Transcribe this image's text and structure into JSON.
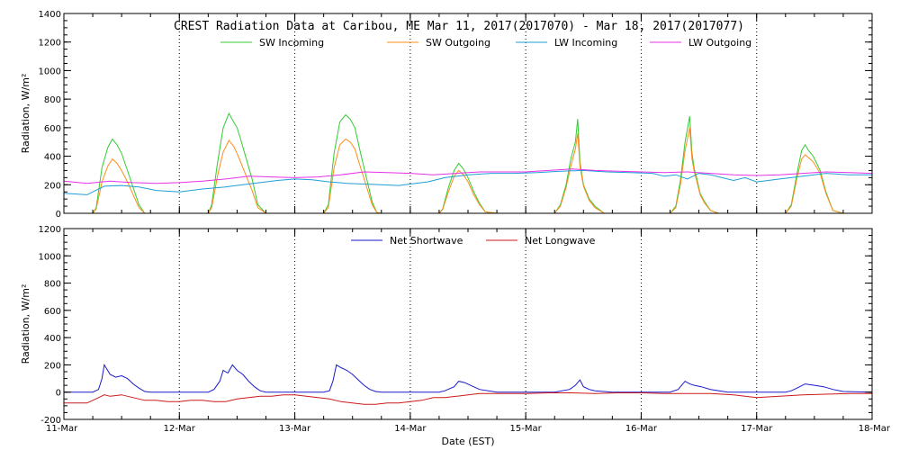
{
  "chart_data": [
    {
      "type": "line",
      "title": "CREST Radiation Data at Caribou, ME   Mar 11, 2017(2017070) - Mar 18, 2017(2017077)",
      "ylabel": "Radiation, W/m^2",
      "xlabel": "",
      "ylim": [
        0,
        1400
      ],
      "yticks": [
        0,
        200,
        400,
        600,
        800,
        1000,
        1200,
        1400
      ],
      "xlim": [
        0,
        7
      ],
      "xtick_labels": [
        "11-Mar",
        "12-Mar",
        "13-Mar",
        "14-Mar",
        "15-Mar",
        "16-Mar",
        "17-Mar",
        "18-Mar"
      ],
      "grid": true,
      "legend_position": "top",
      "series": [
        {
          "name": "SW Incoming",
          "color": "#33cc33",
          "x": [
            0.0,
            0.25,
            0.28,
            0.33,
            0.38,
            0.42,
            0.46,
            0.5,
            0.55,
            0.6,
            0.65,
            0.7,
            0.75,
            1.0,
            1.25,
            1.28,
            1.33,
            1.38,
            1.43,
            1.47,
            1.5,
            1.53,
            1.58,
            1.63,
            1.68,
            1.75,
            2.0,
            2.25,
            2.29,
            2.34,
            2.39,
            2.44,
            2.48,
            2.52,
            2.57,
            2.62,
            2.67,
            2.71,
            2.75,
            3.0,
            3.25,
            3.28,
            3.33,
            3.38,
            3.42,
            3.46,
            3.5,
            3.55,
            3.6,
            3.65,
            3.75,
            4.0,
            4.25,
            4.3,
            4.35,
            4.39,
            4.43,
            4.45,
            4.47,
            4.5,
            4.55,
            4.6,
            4.68,
            4.75,
            5.0,
            5.25,
            5.3,
            5.34,
            5.38,
            5.42,
            5.44,
            5.46,
            5.48,
            5.51,
            5.55,
            5.6,
            5.67,
            5.75,
            6.0,
            6.25,
            6.3,
            6.35,
            6.39,
            6.42,
            6.45,
            6.49,
            6.55,
            6.6,
            6.66,
            6.75,
            7.0
          ],
          "y": [
            0,
            0,
            40,
            320,
            460,
            520,
            480,
            420,
            300,
            180,
            60,
            0,
            0,
            0,
            0,
            60,
            350,
            600,
            700,
            640,
            600,
            520,
            380,
            240,
            60,
            0,
            0,
            0,
            60,
            420,
            640,
            690,
            660,
            600,
            420,
            250,
            80,
            5,
            0,
            0,
            0,
            30,
            180,
            300,
            350,
            310,
            250,
            150,
            70,
            10,
            0,
            0,
            0,
            60,
            200,
            380,
            500,
            660,
            360,
            200,
            100,
            50,
            0,
            0,
            0,
            0,
            50,
            230,
            500,
            680,
            420,
            310,
            250,
            140,
            80,
            20,
            0,
            0,
            0,
            0,
            60,
            280,
            440,
            480,
            440,
            400,
            300,
            150,
            20,
            0,
            0
          ]
        },
        {
          "name": "SW Outgoing",
          "color": "#ff8c1a",
          "x": [
            0.0,
            0.25,
            0.28,
            0.33,
            0.38,
            0.42,
            0.46,
            0.5,
            0.55,
            0.6,
            0.65,
            0.7,
            0.75,
            1.0,
            1.25,
            1.28,
            1.33,
            1.38,
            1.43,
            1.47,
            1.5,
            1.53,
            1.58,
            1.63,
            1.68,
            1.75,
            2.0,
            2.25,
            2.29,
            2.34,
            2.39,
            2.44,
            2.48,
            2.52,
            2.57,
            2.62,
            2.67,
            2.71,
            2.75,
            3.0,
            3.25,
            3.28,
            3.33,
            3.38,
            3.42,
            3.46,
            3.5,
            3.55,
            3.6,
            3.65,
            3.75,
            4.0,
            4.25,
            4.3,
            4.35,
            4.39,
            4.43,
            4.45,
            4.47,
            4.5,
            4.55,
            4.6,
            4.68,
            4.75,
            5.0,
            5.25,
            5.3,
            5.34,
            5.38,
            5.42,
            5.44,
            5.46,
            5.48,
            5.51,
            5.55,
            5.6,
            5.67,
            5.75,
            6.0,
            6.25,
            6.3,
            6.35,
            6.39,
            6.42,
            6.45,
            6.49,
            6.55,
            6.6,
            6.66,
            6.75,
            7.0
          ],
          "y": [
            0,
            0,
            30,
            220,
            330,
            380,
            350,
            300,
            220,
            130,
            40,
            0,
            0,
            0,
            0,
            40,
            260,
            430,
            510,
            470,
            420,
            360,
            260,
            160,
            40,
            0,
            0,
            0,
            40,
            320,
            480,
            520,
            500,
            450,
            320,
            190,
            60,
            5,
            0,
            0,
            0,
            25,
            150,
            260,
            300,
            270,
            220,
            130,
            60,
            10,
            0,
            0,
            0,
            50,
            180,
            330,
            450,
            560,
            330,
            190,
            90,
            40,
            0,
            0,
            0,
            0,
            40,
            200,
            440,
            600,
            380,
            290,
            230,
            130,
            70,
            20,
            0,
            0,
            0,
            0,
            50,
            250,
            380,
            410,
            390,
            360,
            280,
            140,
            20,
            0,
            0
          ]
        },
        {
          "name": "LW Incoming",
          "color": "#1f9ed6",
          "x": [
            0.0,
            0.2,
            0.35,
            0.5,
            0.65,
            0.8,
            1.0,
            1.2,
            1.4,
            1.55,
            1.7,
            1.85,
            2.0,
            2.15,
            2.3,
            2.45,
            2.6,
            2.75,
            2.9,
            3.0,
            3.15,
            3.3,
            3.5,
            3.7,
            3.9,
            4.1,
            4.3,
            4.5,
            4.7,
            4.9,
            5.1,
            5.2,
            5.3,
            5.4,
            5.5,
            5.6,
            5.7,
            5.8,
            5.9,
            6.0,
            6.2,
            6.4,
            6.6,
            6.8,
            7.0
          ],
          "y": [
            140,
            130,
            190,
            195,
            185,
            160,
            150,
            170,
            185,
            200,
            215,
            230,
            240,
            235,
            220,
            210,
            205,
            200,
            195,
            205,
            220,
            250,
            270,
            280,
            280,
            285,
            295,
            300,
            290,
            285,
            280,
            260,
            270,
            240,
            280,
            270,
            250,
            230,
            250,
            220,
            240,
            260,
            280,
            270,
            270
          ]
        },
        {
          "name": "LW Outgoing",
          "color": "#e632e6",
          "x": [
            0.0,
            0.2,
            0.4,
            0.6,
            0.8,
            1.0,
            1.2,
            1.4,
            1.6,
            1.8,
            2.0,
            2.2,
            2.4,
            2.6,
            2.8,
            3.0,
            3.2,
            3.4,
            3.6,
            3.8,
            4.0,
            4.2,
            4.4,
            4.6,
            4.8,
            5.0,
            5.2,
            5.4,
            5.6,
            5.8,
            6.0,
            6.2,
            6.4,
            6.6,
            6.8,
            7.0
          ],
          "y": [
            225,
            210,
            225,
            215,
            210,
            215,
            225,
            240,
            260,
            255,
            250,
            255,
            270,
            290,
            285,
            280,
            270,
            280,
            290,
            290,
            290,
            300,
            310,
            300,
            295,
            290,
            285,
            290,
            280,
            270,
            265,
            270,
            280,
            290,
            285,
            280
          ]
        }
      ]
    },
    {
      "type": "line",
      "title": "",
      "ylabel": "Radiation, W/m^2",
      "xlabel": "Date (EST)",
      "ylim": [
        -200,
        1200
      ],
      "yticks": [
        -200,
        0,
        200,
        400,
        600,
        800,
        1000,
        1200
      ],
      "xlim": [
        0,
        7
      ],
      "xtick_labels": [
        "11-Mar",
        "12-Mar",
        "13-Mar",
        "14-Mar",
        "15-Mar",
        "16-Mar",
        "17-Mar",
        "18-Mar"
      ],
      "grid": true,
      "legend_position": "top",
      "series": [
        {
          "name": "Net Shortwave",
          "color": "#1a1acc",
          "x": [
            0.0,
            0.25,
            0.3,
            0.33,
            0.35,
            0.4,
            0.45,
            0.5,
            0.55,
            0.6,
            0.65,
            0.7,
            0.75,
            1.0,
            1.25,
            1.3,
            1.35,
            1.38,
            1.42,
            1.46,
            1.5,
            1.55,
            1.6,
            1.65,
            1.7,
            1.75,
            2.0,
            2.25,
            2.3,
            2.33,
            2.36,
            2.4,
            2.45,
            2.5,
            2.55,
            2.6,
            2.65,
            2.7,
            2.75,
            3.0,
            3.25,
            3.3,
            3.38,
            3.42,
            3.47,
            3.52,
            3.6,
            3.75,
            4.0,
            4.25,
            4.38,
            4.43,
            4.47,
            4.5,
            4.55,
            4.6,
            4.75,
            5.0,
            5.25,
            5.32,
            5.38,
            5.42,
            5.46,
            5.52,
            5.6,
            5.75,
            6.0,
            6.25,
            6.3,
            6.35,
            6.42,
            6.5,
            6.58,
            6.66,
            6.75,
            7.0
          ],
          "y": [
            0,
            0,
            20,
            100,
            200,
            130,
            110,
            120,
            100,
            60,
            30,
            5,
            0,
            0,
            0,
            20,
            80,
            160,
            140,
            200,
            160,
            130,
            80,
            40,
            10,
            0,
            0,
            0,
            10,
            80,
            200,
            180,
            160,
            130,
            90,
            50,
            20,
            5,
            0,
            0,
            0,
            10,
            40,
            80,
            70,
            50,
            20,
            0,
            0,
            0,
            20,
            50,
            90,
            40,
            20,
            10,
            0,
            0,
            0,
            20,
            80,
            60,
            50,
            40,
            20,
            0,
            0,
            0,
            10,
            30,
            60,
            50,
            40,
            20,
            5,
            0
          ]
        },
        {
          "name": "Net Longwave",
          "color": "#cc1a1a",
          "x": [
            0.0,
            0.2,
            0.3,
            0.35,
            0.4,
            0.5,
            0.6,
            0.7,
            0.8,
            0.9,
            1.0,
            1.1,
            1.2,
            1.3,
            1.4,
            1.5,
            1.6,
            1.7,
            1.8,
            1.9,
            2.0,
            2.1,
            2.2,
            2.3,
            2.4,
            2.5,
            2.6,
            2.7,
            2.8,
            2.9,
            3.0,
            3.1,
            3.2,
            3.3,
            3.4,
            3.5,
            3.6,
            3.8,
            4.0,
            4.2,
            4.4,
            4.6,
            4.8,
            5.0,
            5.2,
            5.4,
            5.6,
            5.8,
            6.0,
            6.2,
            6.4,
            6.6,
            6.8,
            7.0
          ],
          "y": [
            -80,
            -80,
            -40,
            -20,
            -30,
            -20,
            -40,
            -60,
            -60,
            -70,
            -70,
            -60,
            -60,
            -70,
            -70,
            -50,
            -40,
            -30,
            -30,
            -20,
            -20,
            -30,
            -40,
            -50,
            -70,
            -80,
            -90,
            -90,
            -80,
            -80,
            -70,
            -60,
            -40,
            -40,
            -30,
            -20,
            -10,
            -10,
            -10,
            -5,
            -5,
            -10,
            -5,
            -5,
            -10,
            -10,
            -10,
            -20,
            -40,
            -30,
            -20,
            -15,
            -10,
            -10
          ]
        }
      ]
    }
  ]
}
